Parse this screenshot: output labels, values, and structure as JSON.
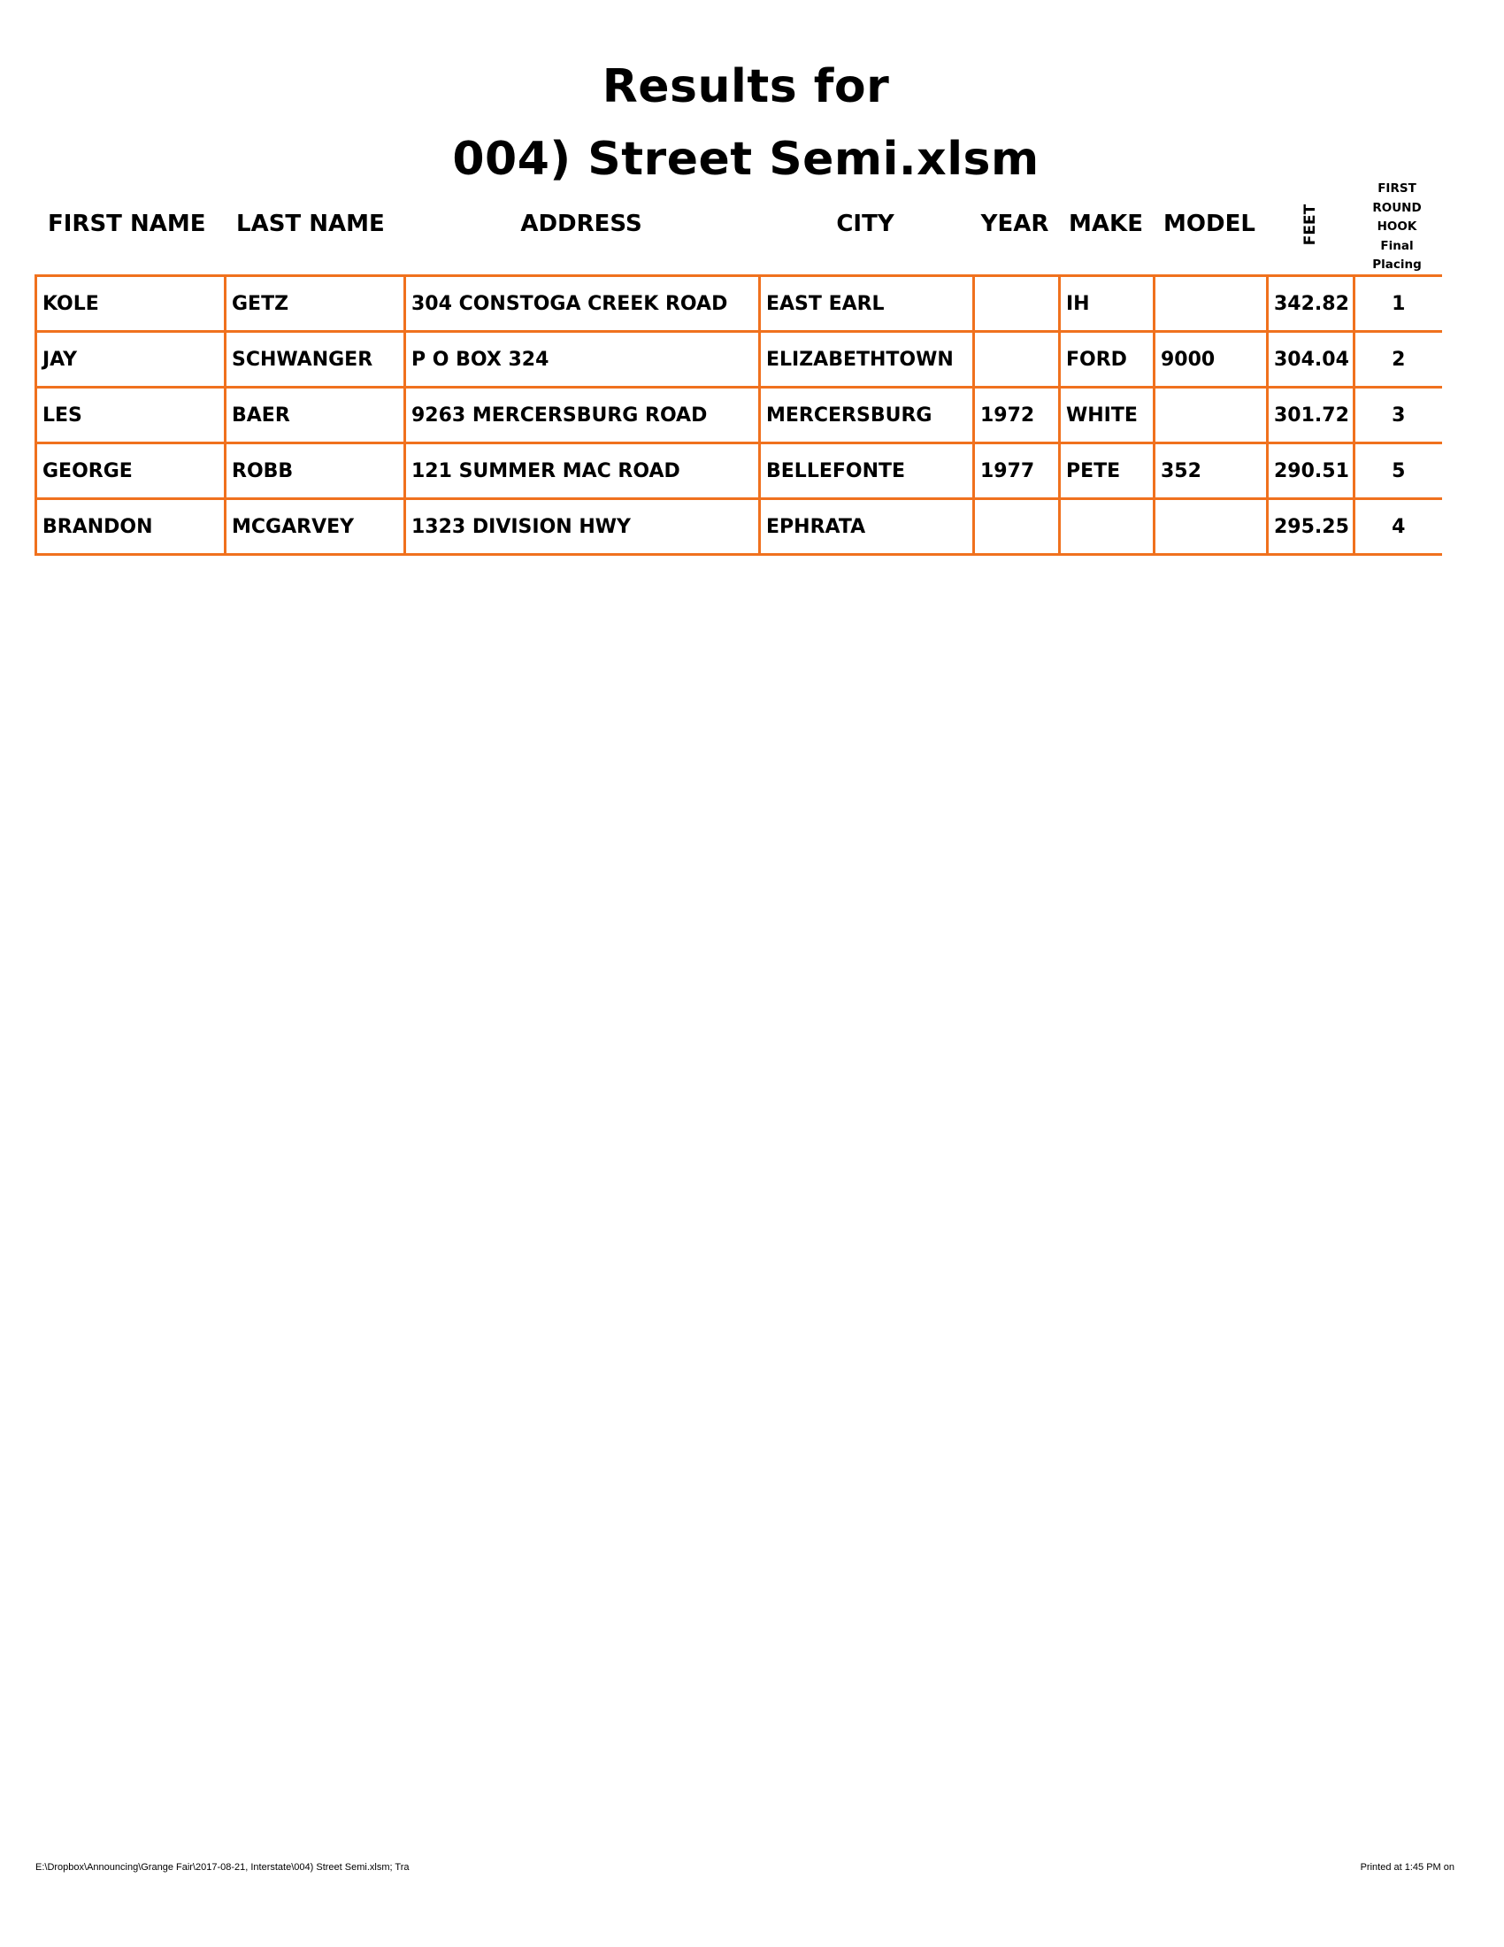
{
  "title": {
    "line1": "Results for",
    "line2": "004) Street Semi.xlsm"
  },
  "headers": {
    "first_name": "FIRST NAME",
    "last_name": "LAST NAME",
    "address": "ADDRESS",
    "city": "CITY",
    "year": "YEAR",
    "make": "MAKE",
    "model": "MODEL",
    "feet": "FEET",
    "placing": [
      "FIRST",
      "ROUND",
      "HOOK",
      "Final",
      "Placing"
    ]
  },
  "rows": [
    {
      "first": "KOLE",
      "last": "GETZ",
      "address": "304 CONSTOGA CREEK ROAD",
      "city": "EAST EARL",
      "year": "",
      "make": "IH",
      "model": "",
      "feet": "342.82",
      "place": "1"
    },
    {
      "first": "JAY",
      "last": "SCHWANGER",
      "address": "P O BOX 324",
      "city": "ELIZABETHTOWN",
      "year": "",
      "make": "FORD",
      "model": "9000",
      "feet": "304.04",
      "place": "2"
    },
    {
      "first": "LES",
      "last": "BAER",
      "address": "9263 MERCERSBURG ROAD",
      "city": "MERCERSBURG",
      "year": "1972",
      "make": "WHITE",
      "model": "",
      "feet": "301.72",
      "place": "3"
    },
    {
      "first": "GEORGE",
      "last": "ROBB",
      "address": "121 SUMMER MAC ROAD",
      "city": "BELLEFONTE",
      "year": "1977",
      "make": "PETE",
      "model": "352",
      "feet": "290.51",
      "place": "5"
    },
    {
      "first": "BRANDON",
      "last": "MCGARVEY",
      "address": "1323 DIVISION HWY",
      "city": "EPHRATA",
      "year": "",
      "make": "",
      "model": "",
      "feet": "295.25",
      "place": "4"
    }
  ],
  "footer": {
    "left": "E:\\Dropbox\\Announcing\\Grange Fair\\2017-08-21, Interstate\\004) Street Semi.xlsm;  Tra",
    "right": "Printed at 1:45 PM on"
  },
  "colors": {
    "border": "#f0711e"
  }
}
